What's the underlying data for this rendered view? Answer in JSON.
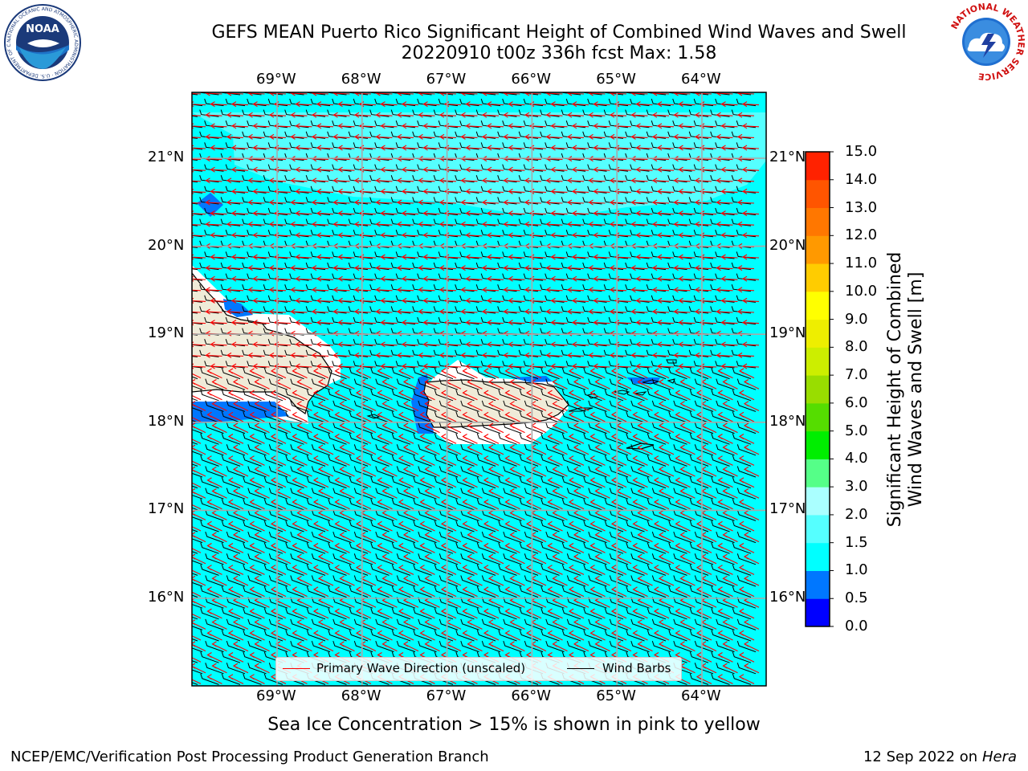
{
  "header": {
    "title_line1": "GEFS MEAN Puerto Rico Significant Height of Combined Wind Waves and Swell",
    "title_line2": "20220910 t00z 336h fcst   Max: 1.58"
  },
  "logos": {
    "noaa": {
      "name": "NOAA",
      "ring_text": "NATIONAL OCEANIC AND ATMOSPHERIC ADMINISTRATION · U.S. DEPARTMENT OF COMMERCE"
    },
    "nws": {
      "ring_text": "NATIONAL WEATHER SERVICE"
    }
  },
  "map": {
    "lon_labels": [
      "69°W",
      "68°W",
      "67°W",
      "66°W",
      "65°W",
      "64°W"
    ],
    "lat_labels": [
      "21°N",
      "20°N",
      "19°N",
      "18°N",
      "17°N",
      "16°N"
    ],
    "ocean_color": "#00ffff",
    "land_color": "#efebd8"
  },
  "colorbar": {
    "title_line1": "Significant Height of Combined",
    "title_line2": "Wind Waves and Swell [m]",
    "ticks": [
      "0.0",
      "0.5",
      "1.0",
      "1.5",
      "2.0",
      "3.0",
      "4.0",
      "5.0",
      "6.0",
      "7.0",
      "8.0",
      "9.0",
      "10.0",
      "11.0",
      "12.0",
      "13.0",
      "14.0",
      "15.0"
    ],
    "colors": [
      "#0000ff",
      "#0077ff",
      "#00ffff",
      "#55ffff",
      "#aaffff",
      "#55ff88",
      "#00ee00",
      "#55dd00",
      "#99dd00",
      "#ccee00",
      "#eeee00",
      "#ffff00",
      "#ffcc00",
      "#ff9900",
      "#ff7700",
      "#ff5500",
      "#ff2200",
      "#ff0000"
    ]
  },
  "legend": {
    "primary_wave": "Primary Wave Direction (unscaled)",
    "wind_barbs": "Wind Barbs",
    "wave_color": "#ff0000",
    "barb_color": "#000000"
  },
  "notes": {
    "sea_ice": "Sea Ice Concentration > 15% is shown in pink to yellow"
  },
  "footer": {
    "left": "NCEP/EMC/Verification Post Processing Product Generation Branch",
    "date": "12 Sep 2022 on",
    "host": "Hera"
  }
}
